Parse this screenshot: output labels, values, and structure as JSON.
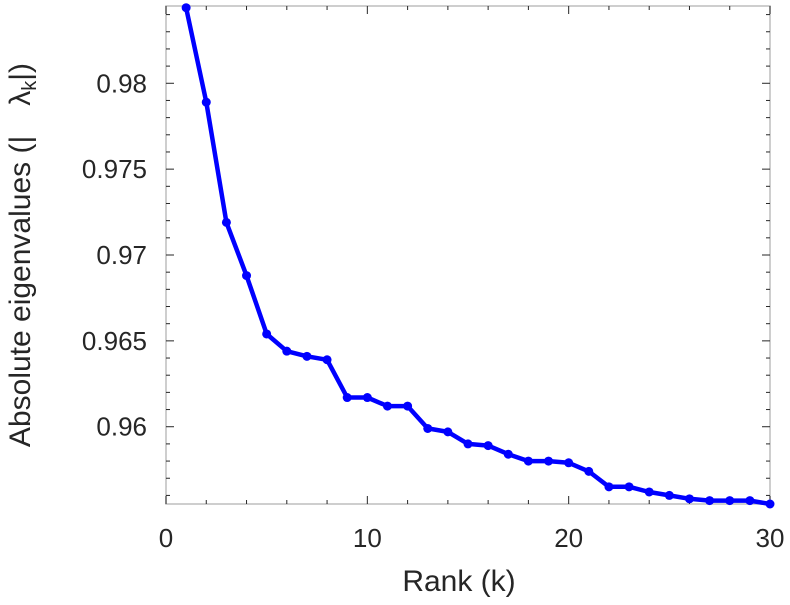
{
  "chart_data": {
    "type": "line",
    "xlabel": "Rank (k)",
    "ylabel": "Absolute eigenvalues (|λk|)",
    "ylabel_parts": {
      "prefix": "Absolute eigenvalues (|",
      "symbol": "λ",
      "subscript": "k",
      "suffix": "|)"
    },
    "xlim": [
      0,
      30
    ],
    "ylim": [
      0.9555,
      0.9845
    ],
    "xticks": [
      0,
      10,
      20,
      30
    ],
    "xtick_labels": [
      "0",
      "10",
      "20",
      "30"
    ],
    "yticks": [
      0.96,
      0.965,
      0.97,
      0.975,
      0.98
    ],
    "ytick_labels": [
      "0.96",
      "0.965",
      "0.97",
      "0.975",
      "0.98"
    ],
    "grid": false,
    "line_color": "#0000ff",
    "series": [
      {
        "x": [
          1,
          2,
          3,
          4,
          5,
          6,
          7,
          8,
          9,
          10,
          11,
          12,
          13,
          14,
          15,
          16,
          17,
          18,
          19,
          20,
          21,
          22,
          23,
          24,
          25,
          26,
          27,
          28,
          29,
          30
        ],
        "values": [
          0.9844,
          0.9789,
          0.9719,
          0.9688,
          0.9654,
          0.9644,
          0.9641,
          0.9639,
          0.9617,
          0.9617,
          0.9612,
          0.9612,
          0.9599,
          0.9597,
          0.959,
          0.9589,
          0.9584,
          0.958,
          0.958,
          0.9579,
          0.9574,
          0.9565,
          0.9565,
          0.9562,
          0.956,
          0.9558,
          0.9557,
          0.9557,
          0.9557,
          0.9555
        ]
      }
    ]
  }
}
